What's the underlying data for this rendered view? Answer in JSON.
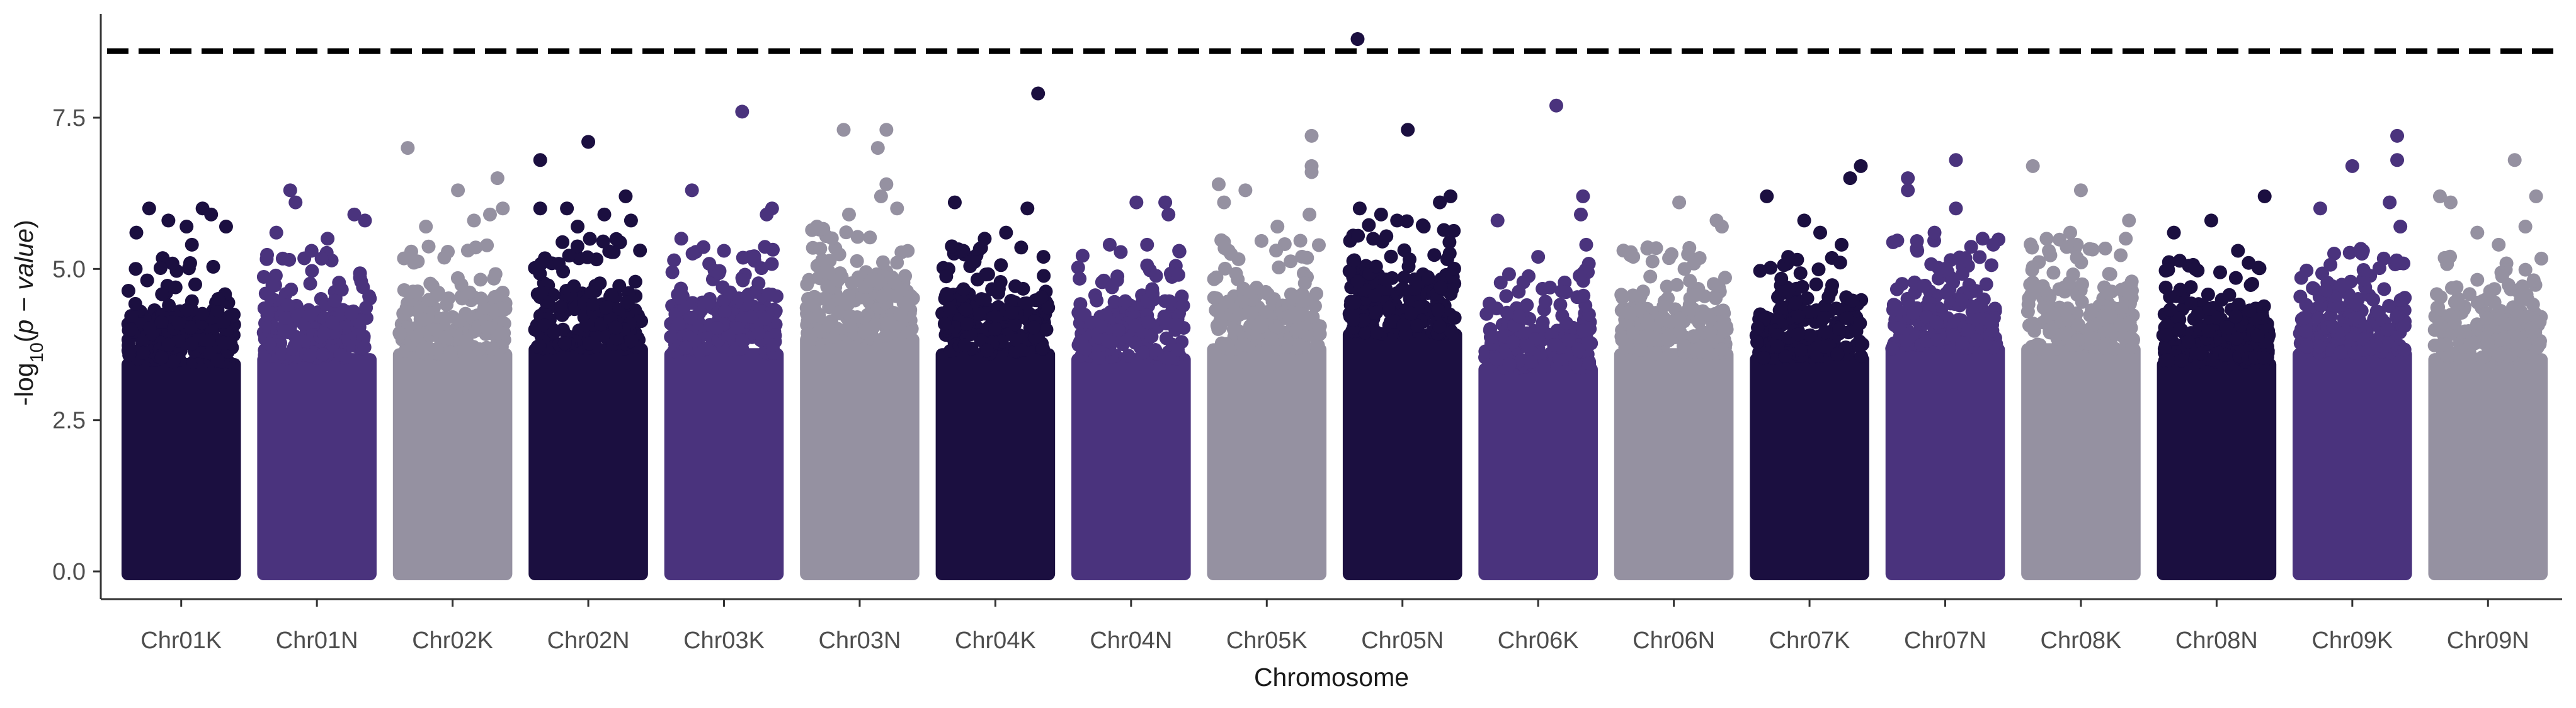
{
  "chart_data": {
    "type": "scatter",
    "subtype": "manhattan",
    "title": "",
    "xlabel": "Chromosome",
    "ylabel": "-log10(p − value)",
    "ylabel_parts": {
      "prefix": "-log",
      "sub": "10",
      "open": "(",
      "expr": "p − value",
      "close": ")"
    },
    "ylim": [
      0,
      9.0
    ],
    "yticks": [
      0.0,
      2.5,
      5.0,
      7.5
    ],
    "ytick_labels": [
      "0.0",
      "2.5",
      "5.0",
      "7.5"
    ],
    "threshold": 8.6,
    "grid": false,
    "legend": "none",
    "colors": {
      "dark": "#1b0f40",
      "mid": "#4a337d",
      "light": "#9591a1",
      "threshold": "#000000",
      "axis": "#333333"
    },
    "categories": [
      "Chr01K",
      "Chr01N",
      "Chr02K",
      "Chr02N",
      "Chr03K",
      "Chr03N",
      "Chr04K",
      "Chr04N",
      "Chr05K",
      "Chr05N",
      "Chr06K",
      "Chr06N",
      "Chr07K",
      "Chr07N",
      "Chr08K",
      "Chr08N",
      "Chr09K",
      "Chr09N"
    ],
    "series": [
      {
        "category": "Chr01K",
        "color": "dark",
        "bulk_top": 4.3,
        "outliers": [
          [
            0.08,
            5.6
          ],
          [
            0.2,
            6.0
          ],
          [
            0.38,
            5.8
          ],
          [
            0.55,
            5.7
          ],
          [
            0.7,
            6.0
          ],
          [
            0.78,
            5.9
          ],
          [
            0.92,
            5.7
          ],
          [
            0.6,
            5.4
          ]
        ]
      },
      {
        "category": "Chr01N",
        "color": "mid",
        "bulk_top": 4.4,
        "outliers": [
          [
            0.25,
            6.3
          ],
          [
            0.3,
            6.1
          ],
          [
            0.12,
            5.6
          ],
          [
            0.6,
            5.5
          ],
          [
            0.85,
            5.9
          ],
          [
            0.95,
            5.8
          ],
          [
            0.45,
            5.3
          ]
        ]
      },
      {
        "category": "Chr02K",
        "color": "light",
        "bulk_top": 4.5,
        "outliers": [
          [
            0.08,
            7.0
          ],
          [
            0.55,
            6.3
          ],
          [
            0.92,
            6.5
          ],
          [
            0.25,
            5.7
          ],
          [
            0.7,
            5.8
          ],
          [
            0.85,
            5.9
          ],
          [
            0.97,
            6.0
          ]
        ]
      },
      {
        "category": "Chr02N",
        "color": "dark",
        "bulk_top": 4.6,
        "outliers": [
          [
            0.05,
            6.8
          ],
          [
            0.5,
            7.1
          ],
          [
            0.85,
            6.2
          ],
          [
            0.05,
            6.0
          ],
          [
            0.3,
            6.0
          ],
          [
            0.65,
            5.9
          ],
          [
            0.9,
            5.8
          ],
          [
            0.4,
            5.7
          ]
        ]
      },
      {
        "category": "Chr03K",
        "color": "mid",
        "bulk_top": 4.5,
        "outliers": [
          [
            0.67,
            7.6
          ],
          [
            0.2,
            6.3
          ],
          [
            0.95,
            6.0
          ],
          [
            0.9,
            5.9
          ],
          [
            0.1,
            5.5
          ],
          [
            0.5,
            5.3
          ],
          [
            0.75,
            5.2
          ]
        ]
      },
      {
        "category": "Chr03N",
        "color": "light",
        "bulk_top": 4.8,
        "outliers": [
          [
            0.35,
            7.3
          ],
          [
            0.75,
            7.3
          ],
          [
            0.67,
            7.0
          ],
          [
            0.75,
            6.4
          ],
          [
            0.7,
            6.2
          ],
          [
            0.1,
            5.7
          ],
          [
            0.4,
            5.9
          ],
          [
            0.85,
            6.0
          ]
        ]
      },
      {
        "category": "Chr04K",
        "color": "dark",
        "bulk_top": 4.5,
        "outliers": [
          [
            0.9,
            7.9
          ],
          [
            0.12,
            6.1
          ],
          [
            0.8,
            6.0
          ],
          [
            0.6,
            5.6
          ],
          [
            0.4,
            5.5
          ],
          [
            0.2,
            5.3
          ],
          [
            0.95,
            5.2
          ]
        ]
      },
      {
        "category": "Chr04N",
        "color": "mid",
        "bulk_top": 4.4,
        "outliers": [
          [
            0.55,
            6.1
          ],
          [
            0.82,
            6.1
          ],
          [
            0.85,
            5.9
          ],
          [
            0.3,
            5.4
          ],
          [
            0.65,
            5.4
          ],
          [
            0.95,
            5.3
          ]
        ]
      },
      {
        "category": "Chr05K",
        "color": "light",
        "bulk_top": 4.6,
        "outliers": [
          [
            0.92,
            7.2
          ],
          [
            0.92,
            6.7
          ],
          [
            0.92,
            6.6
          ],
          [
            0.05,
            6.4
          ],
          [
            0.3,
            6.3
          ],
          [
            0.1,
            6.1
          ],
          [
            0.6,
            5.7
          ],
          [
            0.9,
            5.9
          ]
        ]
      },
      {
        "category": "Chr05N",
        "color": "dark",
        "bulk_top": 4.9,
        "outliers": [
          [
            0.08,
            8.8
          ],
          [
            0.55,
            7.3
          ],
          [
            0.85,
            6.1
          ],
          [
            0.95,
            6.2
          ],
          [
            0.1,
            6.0
          ],
          [
            0.3,
            5.9
          ],
          [
            0.45,
            5.8
          ],
          [
            0.7,
            5.7
          ]
        ]
      },
      {
        "category": "Chr06K",
        "color": "mid",
        "bulk_top": 4.2,
        "outliers": [
          [
            0.67,
            7.7
          ],
          [
            0.92,
            6.2
          ],
          [
            0.9,
            5.9
          ],
          [
            0.12,
            5.8
          ],
          [
            0.95,
            5.4
          ],
          [
            0.5,
            5.2
          ]
        ]
      },
      {
        "category": "Chr06N",
        "color": "light",
        "bulk_top": 4.5,
        "outliers": [
          [
            0.55,
            6.1
          ],
          [
            0.9,
            5.8
          ],
          [
            0.95,
            5.7
          ],
          [
            0.12,
            5.2
          ],
          [
            0.6,
            5.0
          ]
        ]
      },
      {
        "category": "Chr07K",
        "color": "dark",
        "bulk_top": 4.4,
        "outliers": [
          [
            0.1,
            6.2
          ],
          [
            0.88,
            6.5
          ],
          [
            0.98,
            6.7
          ],
          [
            0.45,
            5.8
          ],
          [
            0.6,
            5.6
          ],
          [
            0.8,
            5.4
          ],
          [
            0.3,
            5.2
          ]
        ]
      },
      {
        "category": "Chr07N",
        "color": "mid",
        "bulk_top": 4.6,
        "outliers": [
          [
            0.15,
            6.5
          ],
          [
            0.6,
            6.8
          ],
          [
            0.15,
            6.3
          ],
          [
            0.6,
            6.0
          ],
          [
            0.4,
            5.6
          ],
          [
            0.85,
            5.5
          ],
          [
            0.95,
            5.4
          ]
        ]
      },
      {
        "category": "Chr08K",
        "color": "light",
        "bulk_top": 4.6,
        "outliers": [
          [
            0.05,
            6.7
          ],
          [
            0.5,
            6.3
          ],
          [
            0.95,
            5.8
          ],
          [
            0.4,
            5.6
          ],
          [
            0.92,
            5.5
          ],
          [
            0.2,
            5.3
          ]
        ]
      },
      {
        "category": "Chr08N",
        "color": "dark",
        "bulk_top": 4.3,
        "outliers": [
          [
            0.45,
            5.8
          ],
          [
            0.95,
            6.2
          ],
          [
            0.1,
            5.6
          ],
          [
            0.7,
            5.3
          ],
          [
            0.3,
            5.0
          ],
          [
            0.8,
            5.1
          ]
        ]
      },
      {
        "category": "Chr09K",
        "color": "mid",
        "bulk_top": 4.5,
        "outliers": [
          [
            0.92,
            7.2
          ],
          [
            0.92,
            6.8
          ],
          [
            0.5,
            6.7
          ],
          [
            0.2,
            6.0
          ],
          [
            0.85,
            6.1
          ],
          [
            0.95,
            5.7
          ],
          [
            0.6,
            5.3
          ]
        ]
      },
      {
        "category": "Chr09N",
        "color": "light",
        "bulk_top": 4.4,
        "outliers": [
          [
            0.75,
            6.8
          ],
          [
            0.05,
            6.2
          ],
          [
            0.15,
            6.1
          ],
          [
            0.95,
            6.2
          ],
          [
            0.4,
            5.6
          ],
          [
            0.85,
            5.7
          ],
          [
            0.6,
            5.4
          ]
        ]
      }
    ]
  }
}
